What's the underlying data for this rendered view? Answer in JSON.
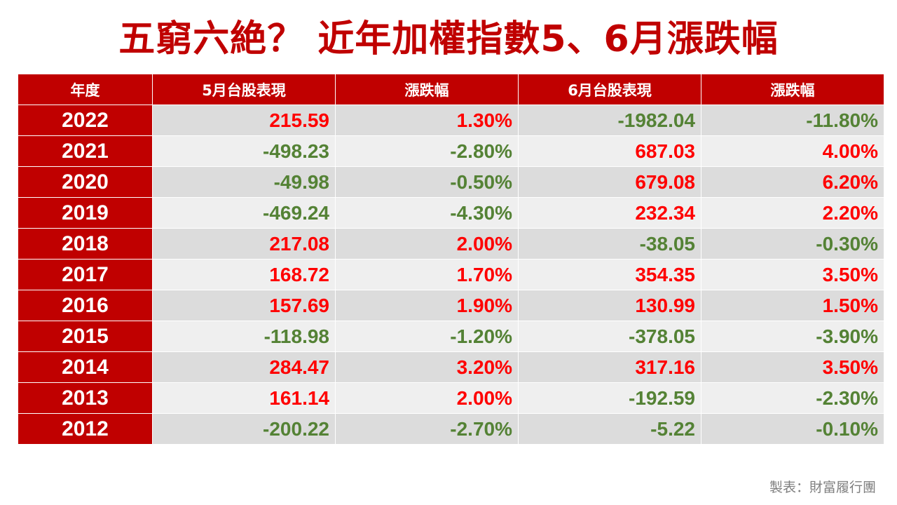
{
  "title": "五窮六絶？ 近年加權指數5、6月漲跌幅",
  "table": {
    "headers": [
      "年度",
      "5月台股表現",
      "漲跌幅",
      "6月台股表現",
      "漲跌幅"
    ],
    "rows": [
      {
        "year": "2022",
        "may_points": "215.59",
        "may_pct": "1.30%",
        "jun_points": "-1982.04",
        "jun_pct": "-11.80%"
      },
      {
        "year": "2021",
        "may_points": "-498.23",
        "may_pct": "-2.80%",
        "jun_points": "687.03",
        "jun_pct": "4.00%"
      },
      {
        "year": "2020",
        "may_points": "-49.98",
        "may_pct": "-0.50%",
        "jun_points": "679.08",
        "jun_pct": "6.20%"
      },
      {
        "year": "2019",
        "may_points": "-469.24",
        "may_pct": "-4.30%",
        "jun_points": "232.34",
        "jun_pct": "2.20%"
      },
      {
        "year": "2018",
        "may_points": "217.08",
        "may_pct": "2.00%",
        "jun_points": "-38.05",
        "jun_pct": "-0.30%"
      },
      {
        "year": "2017",
        "may_points": "168.72",
        "may_pct": "1.70%",
        "jun_points": "354.35",
        "jun_pct": "3.50%"
      },
      {
        "year": "2016",
        "may_points": "157.69",
        "may_pct": "1.90%",
        "jun_points": "130.99",
        "jun_pct": "1.50%"
      },
      {
        "year": "2015",
        "may_points": "-118.98",
        "may_pct": "-1.20%",
        "jun_points": "-378.05",
        "jun_pct": "-3.90%"
      },
      {
        "year": "2014",
        "may_points": "284.47",
        "may_pct": "3.20%",
        "jun_points": "317.16",
        "jun_pct": "3.50%"
      },
      {
        "year": "2013",
        "may_points": "161.14",
        "may_pct": "2.00%",
        "jun_points": "-192.59",
        "jun_pct": "-2.30%"
      },
      {
        "year": "2012",
        "may_points": "-200.22",
        "may_pct": "-2.70%",
        "jun_points": "-5.22",
        "jun_pct": "-0.10%"
      }
    ]
  },
  "footer": "製表：財富履行團",
  "colors": {
    "header_bg": "#c00000",
    "positive": "#ff0000",
    "negative": "#548235",
    "row_dark": "#dcdcdc",
    "row_light": "#efefef"
  }
}
